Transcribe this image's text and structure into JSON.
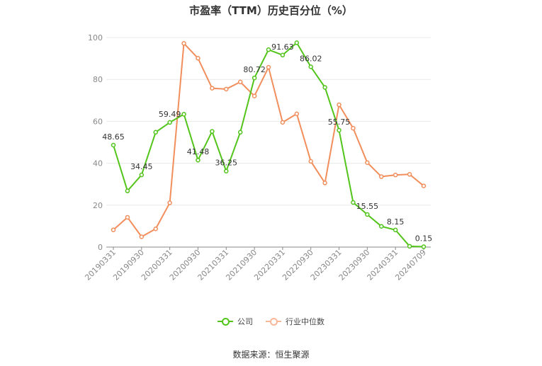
{
  "chart_data": {
    "type": "line",
    "title": "市盈率（TTM）历史百分位（%）",
    "ylim": [
      0,
      100
    ],
    "y_ticks": [
      0,
      20,
      40,
      60,
      80,
      100
    ],
    "grid": true,
    "x_tick_labels": [
      "20190331",
      "20190930",
      "20200331",
      "20200930",
      "20210331",
      "20210930",
      "20220331",
      "20220930",
      "20230331",
      "20230930",
      "20240331",
      "20240709"
    ],
    "x": [
      "20190331",
      "20190630",
      "20190930",
      "20191231",
      "20200331",
      "20200630",
      "20200930",
      "20201231",
      "20210331",
      "20210630",
      "20210930",
      "20211231",
      "20220331",
      "20220630",
      "20220930",
      "20221231",
      "20230331",
      "20230630",
      "20230930",
      "20231231",
      "20240331",
      "20240630",
      "20240709"
    ],
    "series": [
      {
        "name": "公司",
        "color": "#52c41a",
        "values": [
          48.65,
          26.8,
          34.45,
          54.8,
          59.49,
          63.4,
          41.48,
          55.2,
          36.25,
          54.8,
          80.72,
          94.2,
          91.63,
          97.5,
          86.02,
          76.2,
          55.75,
          21.3,
          15.55,
          9.9,
          8.15,
          0.4,
          0.15
        ],
        "labels": [
          "48.65",
          null,
          "34.45",
          null,
          "59.49",
          null,
          "41.48",
          null,
          "36.25",
          null,
          "80.72",
          null,
          "91.63",
          null,
          "86.02",
          null,
          "55.75",
          null,
          "15.55",
          null,
          "8.15",
          null,
          "0.15"
        ]
      },
      {
        "name": "行业中位数",
        "color": "#f28e5c",
        "values": [
          8.2,
          14.2,
          4.9,
          8.7,
          21.1,
          97.2,
          90.1,
          75.8,
          75.4,
          78.8,
          72.1,
          85.8,
          59.5,
          63.6,
          40.9,
          30.6,
          67.9,
          56.7,
          40.3,
          33.6,
          34.4,
          34.7,
          29.2
        ]
      }
    ]
  },
  "legend": {
    "company": "公司",
    "industry": "行业中位数"
  },
  "source": "数据来源：恒生聚源"
}
